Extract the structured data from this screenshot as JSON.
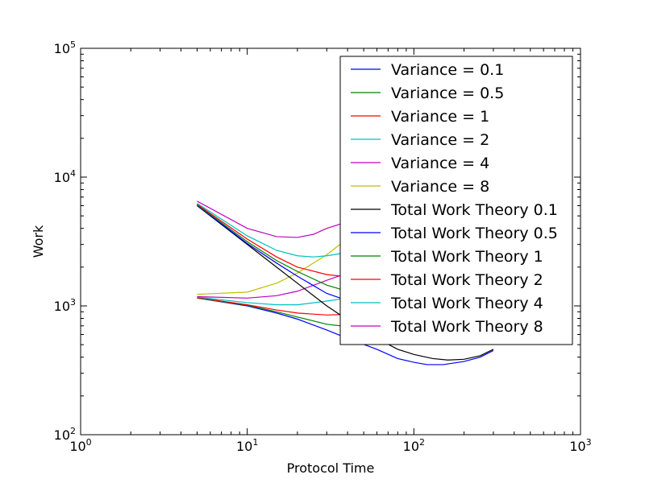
{
  "chart_data": {
    "type": "line",
    "title": "",
    "xlabel": "Protocol Time",
    "ylabel": "Work",
    "xscale": "log",
    "yscale": "log",
    "xlim": [
      1,
      1000
    ],
    "ylim": [
      100,
      100000
    ],
    "x_ticks": [
      {
        "value": 1,
        "base": "10",
        "exp": "0"
      },
      {
        "value": 10,
        "base": "10",
        "exp": "1"
      },
      {
        "value": 100,
        "base": "10",
        "exp": "2"
      },
      {
        "value": 1000,
        "base": "10",
        "exp": "3"
      }
    ],
    "y_ticks": [
      {
        "value": 100,
        "base": "10",
        "exp": "2"
      },
      {
        "value": 1000,
        "base": "10",
        "exp": "3"
      },
      {
        "value": 10000,
        "base": "10",
        "exp": "4"
      },
      {
        "value": 100000,
        "base": "10",
        "exp": "5"
      }
    ],
    "grid": false,
    "legend_position": "top-right",
    "series": [
      {
        "name": "Variance = 0.1",
        "color": "#0000ff",
        "style": "solid",
        "x": [
          5,
          10,
          15,
          20,
          30,
          40,
          60,
          80,
          100,
          120,
          150,
          200,
          250,
          300
        ],
        "y": [
          1150,
          1000,
          880,
          790,
          650,
          560,
          460,
          390,
          365,
          350,
          350,
          370,
          400,
          450
        ]
      },
      {
        "name": "Variance = 0.5",
        "color": "#008000",
        "style": "solid",
        "x": [
          5,
          10,
          15,
          20,
          30,
          40
        ],
        "y": [
          1150,
          1010,
          900,
          820,
          720,
          690
        ]
      },
      {
        "name": "Variance = 1",
        "color": "#ff0000",
        "style": "solid",
        "x": [
          5,
          10,
          15,
          20,
          30,
          40
        ],
        "y": [
          1160,
          1020,
          930,
          880,
          850,
          860
        ]
      },
      {
        "name": "Variance = 2",
        "color": "#00bfbf",
        "style": "solid",
        "x": [
          5,
          10,
          15,
          20,
          30,
          40
        ],
        "y": [
          1170,
          1060,
          1020,
          1020,
          1090,
          1150
        ]
      },
      {
        "name": "Variance = 4",
        "color": "#bf00bf",
        "style": "solid",
        "x": [
          5,
          10,
          15,
          20,
          30,
          40
        ],
        "y": [
          1180,
          1150,
          1200,
          1300,
          1580,
          1800
        ]
      },
      {
        "name": "Variance = 8",
        "color": "#bfbf00",
        "style": "solid",
        "x": [
          5,
          10,
          15,
          20,
          30,
          36
        ],
        "y": [
          1230,
          1280,
          1500,
          1800,
          2500,
          3000
        ]
      },
      {
        "name": "Total Work Theory 0.1",
        "color": "#000000",
        "style": "solid",
        "x": [
          5,
          10,
          15,
          20,
          30,
          40,
          60,
          80,
          100,
          130,
          160,
          200,
          250,
          300
        ],
        "y": [
          6000,
          3000,
          2000,
          1500,
          1000,
          780,
          560,
          460,
          420,
          390,
          380,
          385,
          410,
          460
        ]
      },
      {
        "name": "Total Work Theory 0.5",
        "color": "#0000ff",
        "style": "solid",
        "x": [
          5,
          10,
          15,
          20,
          30,
          40
        ],
        "y": [
          6050,
          3050,
          2150,
          1700,
          1250,
          1100
        ]
      },
      {
        "name": "Total Work Theory 1",
        "color": "#008000",
        "style": "solid",
        "x": [
          5,
          10,
          15,
          20,
          30,
          40
        ],
        "y": [
          6100,
          3150,
          2250,
          1850,
          1450,
          1300
        ]
      },
      {
        "name": "Total Work Theory 2",
        "color": "#ff0000",
        "style": "solid",
        "x": [
          5,
          10,
          15,
          20,
          30,
          40
        ],
        "y": [
          6150,
          3300,
          2400,
          2000,
          1750,
          1680
        ]
      },
      {
        "name": "Total Work Theory 4",
        "color": "#00bfbf",
        "style": "solid",
        "x": [
          5,
          10,
          15,
          20,
          25,
          30,
          40
        ],
        "y": [
          6250,
          3500,
          2700,
          2450,
          2400,
          2450,
          2600
        ]
      },
      {
        "name": "Total Work Theory 8",
        "color": "#bf00bf",
        "style": "solid",
        "x": [
          5,
          10,
          15,
          20,
          25,
          30,
          40
        ],
        "y": [
          6500,
          4000,
          3450,
          3400,
          3600,
          4000,
          4500
        ]
      }
    ]
  }
}
